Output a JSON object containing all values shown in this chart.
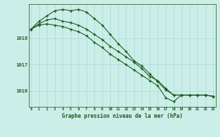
{
  "bg_color": "#cceee8",
  "grid_color": "#aadddd",
  "line_color": "#1a5c1a",
  "title": "Graphe pression niveau de la mer (hPa)",
  "ylabel_ticks": [
    1016,
    1017,
    1018
  ],
  "xlim": [
    -0.3,
    23.3
  ],
  "ylim": [
    1015.4,
    1019.3
  ],
  "xticks": [
    0,
    1,
    2,
    3,
    4,
    5,
    6,
    7,
    8,
    9,
    10,
    11,
    12,
    13,
    14,
    15,
    16,
    17,
    18,
    19,
    20,
    21,
    22,
    23
  ],
  "line1": [
    1018.35,
    1018.65,
    1018.85,
    1019.05,
    1019.1,
    1019.05,
    1019.1,
    1019.0,
    1018.75,
    1018.5,
    1018.15,
    1017.8,
    1017.5,
    1017.15,
    1016.95,
    1016.65,
    1016.35,
    1016.05,
    1015.85,
    1015.85,
    1015.85,
    1015.85,
    1015.85,
    1015.8
  ],
  "line2": [
    1018.35,
    1018.55,
    1018.7,
    1018.75,
    1018.65,
    1018.6,
    1018.5,
    1018.35,
    1018.15,
    1017.95,
    1017.7,
    1017.5,
    1017.3,
    1017.1,
    1016.85,
    1016.55,
    1016.4,
    1016.1,
    1015.85,
    1015.85,
    1015.85,
    1015.85,
    1015.85,
    1015.8
  ],
  "line3": [
    1018.35,
    1018.5,
    1018.55,
    1018.5,
    1018.45,
    1018.35,
    1018.25,
    1018.1,
    1017.85,
    1017.65,
    1017.4,
    1017.2,
    1017.0,
    1016.8,
    1016.6,
    1016.4,
    1016.2,
    1015.75,
    1015.6,
    1015.85,
    1015.85,
    1015.85,
    1015.85,
    1015.8
  ]
}
